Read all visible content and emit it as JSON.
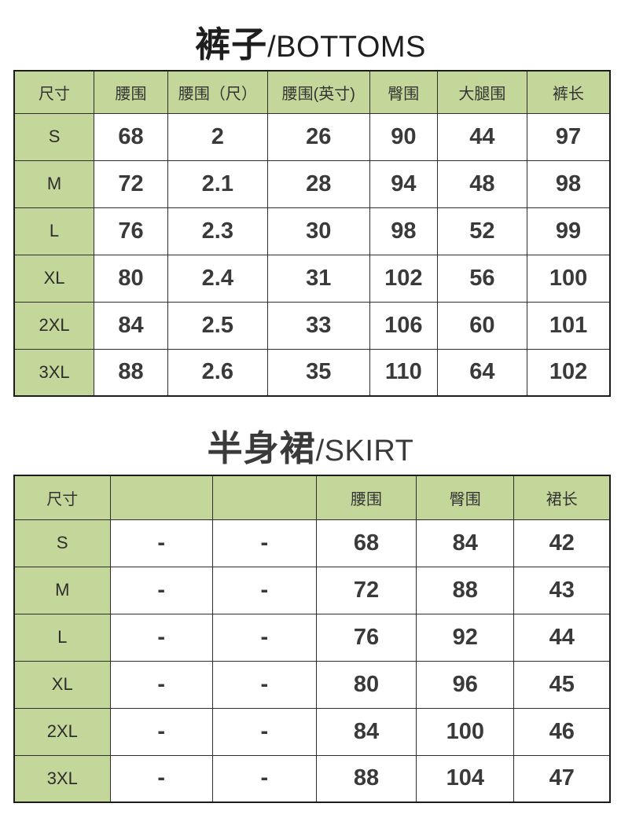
{
  "page": {
    "background": "#ffffff"
  },
  "colors": {
    "header_fill": "#c4d79b",
    "grid_line": "#2e2e2e",
    "outer_border": "#1c1c1c",
    "value_text": "#3a3a3a",
    "title1_color": "#1e1e1e",
    "title2_color": "#3a3a3a"
  },
  "tables": [
    {
      "title_zh": "裤子",
      "title_en": "/BOTTOMS",
      "headers": [
        "尺寸",
        "腰围",
        "腰围（尺）",
        "腰围(英寸)",
        "臀围",
        "大腿围",
        "裤长"
      ],
      "rows": [
        {
          "size": "S",
          "values": [
            "68",
            "2",
            "26",
            "90",
            "44",
            "97"
          ]
        },
        {
          "size": "M",
          "values": [
            "72",
            "2.1",
            "28",
            "94",
            "48",
            "98"
          ]
        },
        {
          "size": "L",
          "values": [
            "76",
            "2.3",
            "30",
            "98",
            "52",
            "99"
          ]
        },
        {
          "size": "XL",
          "values": [
            "80",
            "2.4",
            "31",
            "102",
            "56",
            "100"
          ]
        },
        {
          "size": "2XL",
          "values": [
            "84",
            "2.5",
            "33",
            "106",
            "60",
            "101"
          ]
        },
        {
          "size": "3XL",
          "values": [
            "88",
            "2.6",
            "35",
            "110",
            "64",
            "102"
          ]
        }
      ]
    },
    {
      "title_zh": "半身裙",
      "title_en": "/SKIRT",
      "headers": [
        "尺寸",
        "",
        "",
        "腰围",
        "臀围",
        "裙长"
      ],
      "rows": [
        {
          "size": "S",
          "values": [
            "-",
            "-",
            "68",
            "84",
            "42"
          ]
        },
        {
          "size": "M",
          "values": [
            "-",
            "-",
            "72",
            "88",
            "43"
          ]
        },
        {
          "size": "L",
          "values": [
            "-",
            "-",
            "76",
            "92",
            "44"
          ]
        },
        {
          "size": "XL",
          "values": [
            "-",
            "-",
            "80",
            "96",
            "45"
          ]
        },
        {
          "size": "2XL",
          "values": [
            "-",
            "-",
            "84",
            "100",
            "46"
          ]
        },
        {
          "size": "3XL",
          "values": [
            "-",
            "-",
            "88",
            "104",
            "47"
          ]
        }
      ]
    }
  ]
}
